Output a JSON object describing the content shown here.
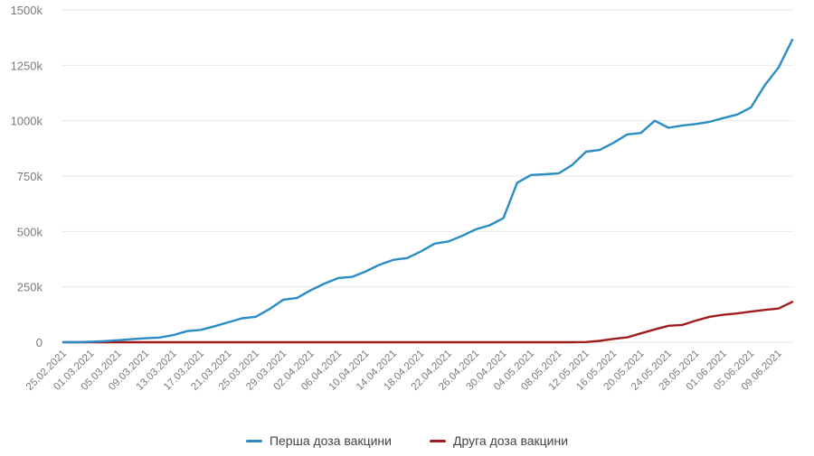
{
  "chart_data": {
    "type": "line",
    "title": "",
    "xlabel": "",
    "ylabel": "",
    "ylim": [
      0,
      1500000
    ],
    "grid": true,
    "legend_position": "bottom",
    "y_ticks": [
      {
        "value": 0,
        "label": "0"
      },
      {
        "value": 250000,
        "label": "250k"
      },
      {
        "value": 500000,
        "label": "500k"
      },
      {
        "value": 750000,
        "label": "750k"
      },
      {
        "value": 1000000,
        "label": "1000k"
      },
      {
        "value": 1250000,
        "label": "1250k"
      },
      {
        "value": 1500000,
        "label": "1500k"
      }
    ],
    "x_tick_labels": [
      "25.02.2021",
      "01.03.2021",
      "05.03.2021",
      "09.03.2021",
      "13.03.2021",
      "17.03.2021",
      "21.03.2021",
      "25.03.2021",
      "29.03.2021",
      "02.04.2021",
      "06.04.2021",
      "10.04.2021",
      "14.04.2021",
      "18.04.2021",
      "22.04.2021",
      "26.04.2021",
      "30.04.2021",
      "04.05.2021",
      "08.05.2021",
      "12.05.2021",
      "16.05.2021",
      "20.05.2021",
      "24.05.2021",
      "28.05.2021",
      "01.06.2021",
      "05.06.2021",
      "09.06.2021"
    ],
    "x": [
      "25.02.2021",
      "27.02.2021",
      "01.03.2021",
      "03.03.2021",
      "05.03.2021",
      "07.03.2021",
      "09.03.2021",
      "11.03.2021",
      "13.03.2021",
      "15.03.2021",
      "17.03.2021",
      "19.03.2021",
      "21.03.2021",
      "23.03.2021",
      "25.03.2021",
      "27.03.2021",
      "29.03.2021",
      "31.03.2021",
      "02.04.2021",
      "04.04.2021",
      "06.04.2021",
      "08.04.2021",
      "10.04.2021",
      "12.04.2021",
      "14.04.2021",
      "16.04.2021",
      "18.04.2021",
      "20.04.2021",
      "22.04.2021",
      "24.04.2021",
      "26.04.2021",
      "28.04.2021",
      "30.04.2021",
      "02.05.2021",
      "04.05.2021",
      "06.05.2021",
      "08.05.2021",
      "10.05.2021",
      "12.05.2021",
      "14.05.2021",
      "16.05.2021",
      "18.05.2021",
      "20.05.2021",
      "22.05.2021",
      "24.05.2021",
      "26.05.2021",
      "28.05.2021",
      "30.05.2021",
      "01.06.2021",
      "03.06.2021",
      "05.06.2021",
      "07.06.2021",
      "09.06.2021",
      "11.06.2021"
    ],
    "series": [
      {
        "name": "Перша доза вакцини",
        "color": "#2b8cc4",
        "values": [
          0,
          500,
          2000,
          5000,
          9000,
          14000,
          18000,
          21000,
          32000,
          50000,
          56000,
          72000,
          90000,
          108000,
          115000,
          150000,
          192000,
          200000,
          235000,
          265000,
          290000,
          295000,
          320000,
          350000,
          372000,
          380000,
          410000,
          445000,
          455000,
          480000,
          510000,
          528000,
          560000,
          720000,
          755000,
          758000,
          762000,
          800000,
          860000,
          868000,
          900000,
          938000,
          945000,
          1000000,
          968000,
          978000,
          985000,
          995000,
          1012000,
          1028000,
          1060000,
          1160000,
          1240000,
          1365000
        ]
      },
      {
        "name": "Друга доза вакцини",
        "color": "#a01c1c",
        "values": [
          0,
          0,
          0,
          0,
          0,
          0,
          0,
          0,
          0,
          0,
          0,
          0,
          0,
          0,
          0,
          0,
          0,
          0,
          0,
          0,
          0,
          0,
          0,
          0,
          0,
          0,
          0,
          0,
          0,
          0,
          0,
          0,
          0,
          0,
          0,
          0,
          0,
          0,
          1000,
          6000,
          15000,
          22000,
          40000,
          58000,
          74000,
          78000,
          98000,
          115000,
          124000,
          130000,
          138000,
          146000,
          152000,
          182000
        ]
      }
    ]
  },
  "legend": {
    "items": [
      {
        "label": "Перша доза вакцини",
        "color": "#2b8cc4"
      },
      {
        "label": "Друга доза вакцини",
        "color": "#a01c1c"
      }
    ]
  }
}
